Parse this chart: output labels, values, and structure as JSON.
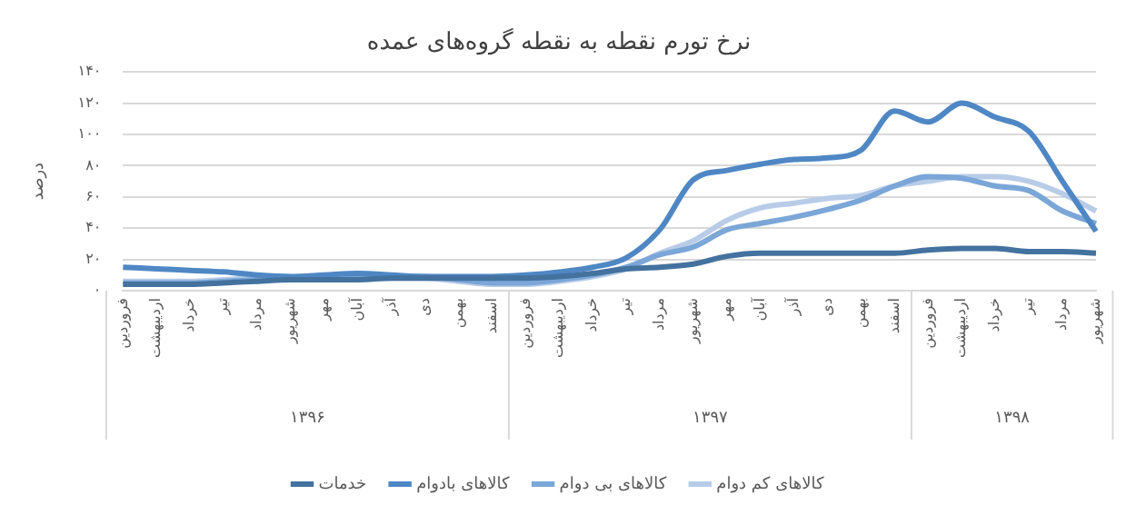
{
  "chart_data": {
    "type": "line",
    "title": "نرخ تورم نقطه به نقطه گروه‌های عمده",
    "ylabel": "درصد",
    "categories": [
      "فروردین",
      "اردیبهشت",
      "خرداد",
      "تیر",
      "مرداد",
      "شهریور",
      "مهر",
      "آبان",
      "آذر",
      "دی",
      "بهمن",
      "اسفند",
      "فروردین",
      "اردیبهشت",
      "خرداد",
      "تیر",
      "مرداد",
      "شهریور",
      "مهر",
      "آبان",
      "آذر",
      "دی",
      "بهمن",
      "اسفند",
      "فروردین",
      "اردیبهشت",
      "خرداد",
      "تیر",
      "مرداد",
      "شهریور"
    ],
    "series": [
      {
        "name": "خدمات",
        "color": "#44729f",
        "values": [
          4,
          4,
          4,
          5,
          6,
          7,
          7,
          7,
          8,
          8,
          8,
          8,
          8,
          9,
          11,
          14,
          15,
          17,
          22,
          24,
          24,
          24,
          24,
          24,
          26,
          27,
          27,
          25,
          25,
          24
        ]
      },
      {
        "name": "کالاهای بادوام",
        "color": "#4f87c4",
        "values": [
          15,
          14,
          13,
          12,
          10,
          9,
          10,
          11,
          10,
          9,
          9,
          9,
          10,
          12,
          15,
          21,
          39,
          71,
          77,
          81,
          84,
          85,
          90,
          115,
          108,
          120,
          111,
          102,
          70,
          38
        ]
      },
      {
        "name": "کالاهای بی دوام",
        "color": "#7ba6d8",
        "values": [
          5,
          5,
          5,
          6,
          7,
          8,
          9,
          9,
          9,
          9,
          7,
          5,
          5,
          7,
          10,
          15,
          23,
          28,
          39,
          43,
          47,
          52,
          58,
          67,
          73,
          72,
          67,
          64,
          51,
          43
        ]
      },
      {
        "name": "کالاهای کم دوام",
        "color": "#b8cce8",
        "values": [
          6,
          6,
          6,
          7,
          8,
          8,
          8,
          8,
          8,
          8,
          6,
          4,
          4,
          6,
          9,
          14,
          24,
          32,
          45,
          53,
          56,
          59,
          61,
          67,
          70,
          73,
          73,
          70,
          62,
          51
        ]
      }
    ],
    "ylim": [
      0,
      140
    ],
    "yticks": [
      {
        "value": 0,
        "label": "۰"
      },
      {
        "value": 20,
        "label": "۲۰"
      },
      {
        "value": 40,
        "label": "۴۰"
      },
      {
        "value": 60,
        "label": "۶۰"
      },
      {
        "value": 80,
        "label": "۸۰"
      },
      {
        "value": 100,
        "label": "۱۰۰"
      },
      {
        "value": 120,
        "label": "۱۲۰"
      },
      {
        "value": 140,
        "label": "۱۴۰"
      }
    ],
    "annotations": [
      "۱۳۹۶",
      "۱۳۹۷",
      "۱۳۹۸"
    ],
    "grid": "y",
    "legend": "bottom",
    "marker": "none",
    "line_style": "solid"
  }
}
